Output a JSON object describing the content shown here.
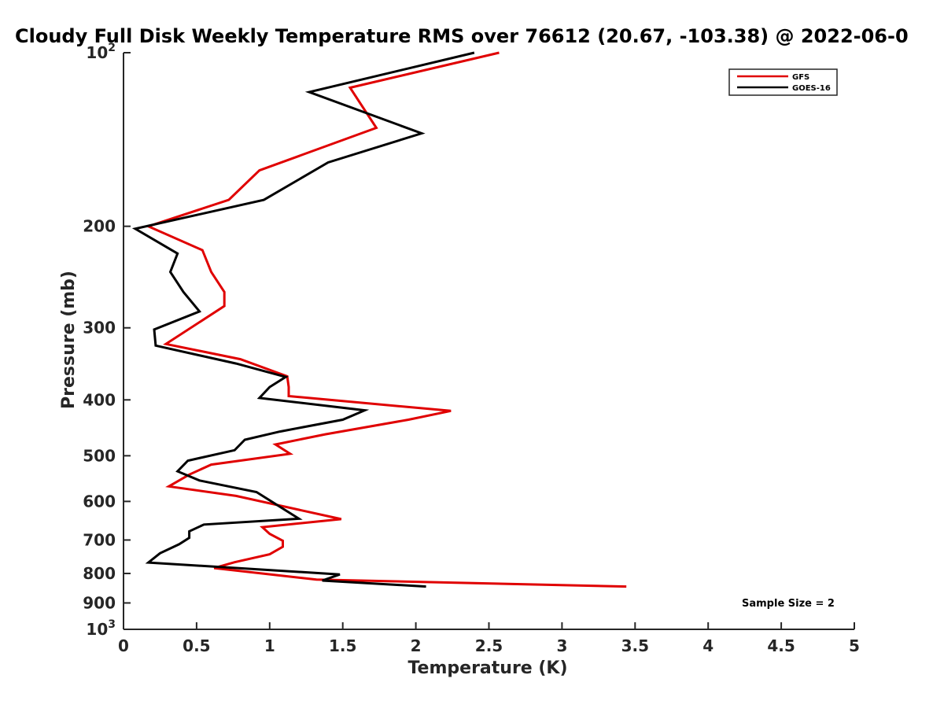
{
  "chart_data": {
    "type": "line",
    "title": "Cloudy Full Disk Weekly Temperature RMS over 76612 (20.67, -103.38) @ 2022-06-0",
    "xlabel": "Temperature (K)",
    "ylabel": "Pressure (mb)",
    "xlim": [
      0,
      5
    ],
    "ylim": [
      100,
      1000
    ],
    "y_scale": "log",
    "y_reversed": true,
    "x_ticks": [
      0,
      0.5,
      1,
      1.5,
      2,
      2.5,
      3,
      3.5,
      4,
      4.5,
      5
    ],
    "x_tick_labels": [
      "0",
      "0.5",
      "1",
      "1.5",
      "2",
      "2.5",
      "3",
      "3.5",
      "4",
      "4.5",
      "5"
    ],
    "y_ticks": [
      100,
      200,
      300,
      400,
      500,
      600,
      700,
      800,
      900,
      1000
    ],
    "y_tick_labels": [
      {
        "base": "10",
        "exp": "2"
      },
      {
        "base": "200",
        "exp": ""
      },
      {
        "base": "300",
        "exp": ""
      },
      {
        "base": "400",
        "exp": ""
      },
      {
        "base": "500",
        "exp": ""
      },
      {
        "base": "600",
        "exp": ""
      },
      {
        "base": "700",
        "exp": ""
      },
      {
        "base": "800",
        "exp": ""
      },
      {
        "base": "900",
        "exp": ""
      },
      {
        "base": "10",
        "exp": "3"
      }
    ],
    "grid": false,
    "legend_position": "top-right",
    "annotation": "Sample Size = 2",
    "series": [
      {
        "name": "GFS",
        "color": "#e00000",
        "points": [
          [
            2.57,
            100
          ],
          [
            1.55,
            115
          ],
          [
            1.73,
            135
          ],
          [
            0.93,
            160
          ],
          [
            0.72,
            180
          ],
          [
            0.17,
            200
          ],
          [
            0.54,
            220
          ],
          [
            0.6,
            240
          ],
          [
            0.69,
            260
          ],
          [
            0.69,
            275
          ],
          [
            0.29,
            320
          ],
          [
            0.8,
            340
          ],
          [
            1.12,
            364
          ],
          [
            1.13,
            380
          ],
          [
            1.13,
            394
          ],
          [
            2.24,
            418
          ],
          [
            1.95,
            433
          ],
          [
            1.38,
            459
          ],
          [
            1.04,
            478
          ],
          [
            1.14,
            496
          ],
          [
            0.6,
            518
          ],
          [
            0.45,
            539
          ],
          [
            0.31,
            565
          ],
          [
            0.77,
            587
          ],
          [
            1.49,
            644
          ],
          [
            0.95,
            665
          ],
          [
            1.0,
            683
          ],
          [
            1.09,
            702
          ],
          [
            1.09,
            719
          ],
          [
            1.0,
            741
          ],
          [
            0.76,
            765
          ],
          [
            0.62,
            783
          ],
          [
            1.32,
            820
          ],
          [
            3.44,
            843
          ]
        ]
      },
      {
        "name": "GOES-16",
        "color": "#000000",
        "points": [
          [
            2.4,
            100
          ],
          [
            1.27,
            117
          ],
          [
            2.04,
            138
          ],
          [
            1.4,
            155
          ],
          [
            0.96,
            180
          ],
          [
            0.08,
            202
          ],
          [
            0.37,
            223
          ],
          [
            0.32,
            240
          ],
          [
            0.41,
            260
          ],
          [
            0.52,
            281
          ],
          [
            0.21,
            302
          ],
          [
            0.22,
            322
          ],
          [
            0.77,
            346
          ],
          [
            1.11,
            365
          ],
          [
            1.0,
            380
          ],
          [
            0.93,
            397
          ],
          [
            1.65,
            417
          ],
          [
            1.5,
            433
          ],
          [
            1.07,
            454
          ],
          [
            0.83,
            469
          ],
          [
            0.76,
            489
          ],
          [
            0.44,
            510
          ],
          [
            0.37,
            532
          ],
          [
            0.52,
            552
          ],
          [
            0.91,
            578
          ],
          [
            1.2,
            643
          ],
          [
            0.55,
            658
          ],
          [
            0.45,
            676
          ],
          [
            0.45,
            694
          ],
          [
            0.38,
            712
          ],
          [
            0.25,
            738
          ],
          [
            0.17,
            766
          ],
          [
            1.48,
            803
          ],
          [
            1.36,
            823
          ],
          [
            2.07,
            843
          ]
        ]
      }
    ]
  }
}
